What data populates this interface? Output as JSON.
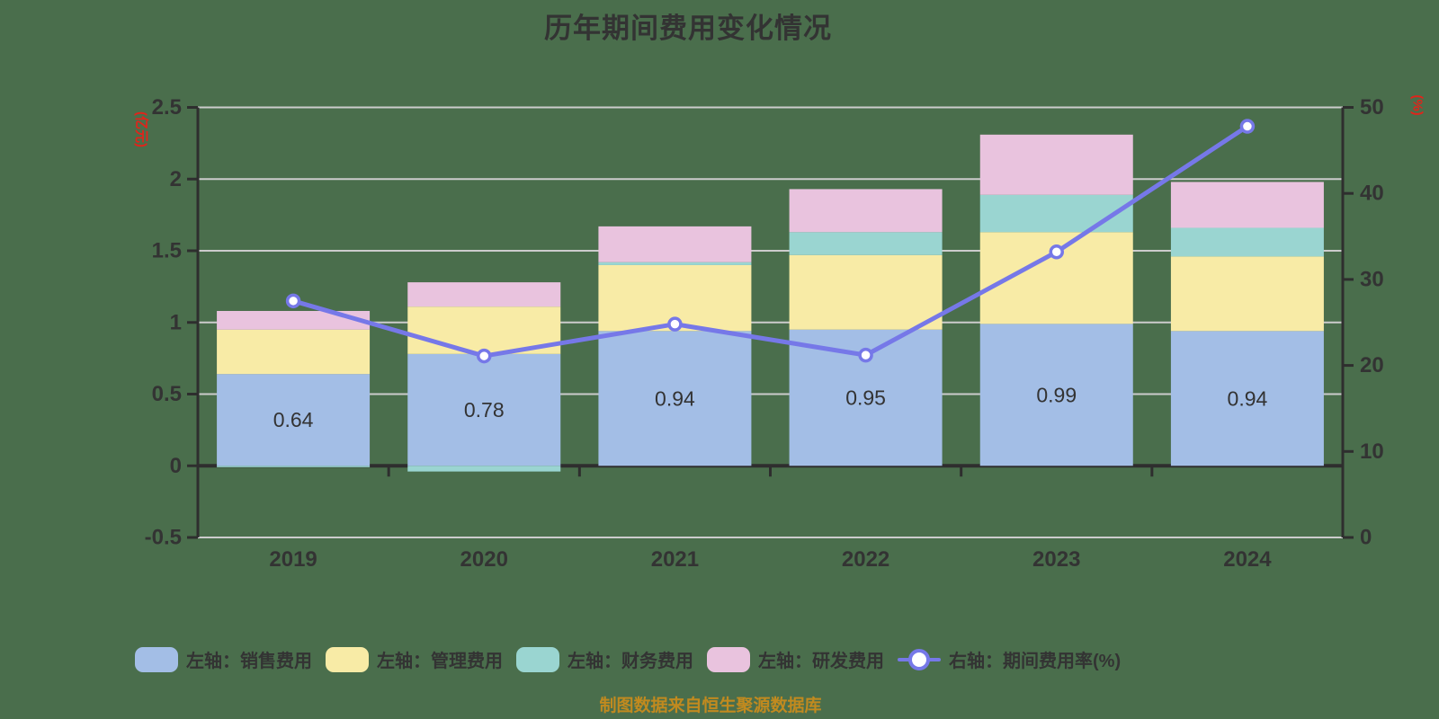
{
  "title": "历年期间费用变化情况",
  "footer": "制图数据来自恒生聚源数据库",
  "colors": {
    "background": "#4a6e4c",
    "sales": "#a3bee6",
    "admin": "#f8eba6",
    "finance": "#9ad5d1",
    "rd": "#e9c3de",
    "line": "#7678e8",
    "marker_fill": "#ffffff",
    "axis": "#2e2e2e",
    "grid": "#cccccc",
    "text": "#333333",
    "axis_unit_red": "#e2231a",
    "footer_orange": "#c18a1f"
  },
  "legend": [
    {
      "label": "左轴：销售费用",
      "type": "bar",
      "colorKey": "sales"
    },
    {
      "label": "左轴：管理费用",
      "type": "bar",
      "colorKey": "admin"
    },
    {
      "label": "左轴：财务费用",
      "type": "bar",
      "colorKey": "finance"
    },
    {
      "label": "左轴：研发费用",
      "type": "bar",
      "colorKey": "rd"
    },
    {
      "label": "右轴：期间费用率(%)",
      "type": "line",
      "colorKey": "line"
    }
  ],
  "chart_data": {
    "type": "bar",
    "subtype": "stacked-bar-with-line",
    "title": "历年期间费用变化情况",
    "categories": [
      "2019",
      "2020",
      "2021",
      "2022",
      "2023",
      "2024"
    ],
    "series": [
      {
        "name": "左轴：销售费用",
        "type": "bar",
        "axis": "left",
        "colorKey": "sales",
        "values": [
          0.64,
          0.78,
          0.94,
          0.95,
          0.99,
          0.94
        ]
      },
      {
        "name": "左轴：管理费用",
        "type": "bar",
        "axis": "left",
        "colorKey": "admin",
        "values": [
          0.31,
          0.33,
          0.46,
          0.52,
          0.64,
          0.52
        ]
      },
      {
        "name": "左轴：财务费用",
        "type": "bar",
        "axis": "left",
        "colorKey": "finance",
        "values": [
          -0.01,
          -0.04,
          0.02,
          0.16,
          0.26,
          0.2
        ]
      },
      {
        "name": "左轴：研发费用",
        "type": "bar",
        "axis": "left",
        "colorKey": "rd",
        "values": [
          0.13,
          0.17,
          0.25,
          0.3,
          0.42,
          0.32
        ]
      },
      {
        "name": "右轴：期间费用率(%)",
        "type": "line",
        "axis": "right",
        "colorKey": "line",
        "values": [
          27.5,
          21.1,
          24.8,
          21.2,
          33.2,
          47.8
        ]
      }
    ],
    "bar_value_labels": [
      "0.64",
      "0.78",
      "0.94",
      "0.95",
      "0.99",
      "0.94"
    ],
    "left_axis": {
      "unit": "(亿元)",
      "min": -0.5,
      "max": 2.5,
      "tick_labels": [
        "2.5",
        "2",
        "1.5",
        "1",
        "0.5",
        "0",
        "-0.5"
      ]
    },
    "right_axis": {
      "unit": "(%)",
      "min": 0,
      "max": 50,
      "tick_labels": [
        "50",
        "40",
        "30",
        "20",
        "10",
        "0"
      ]
    },
    "grid": true,
    "legend_position": "bottom"
  }
}
